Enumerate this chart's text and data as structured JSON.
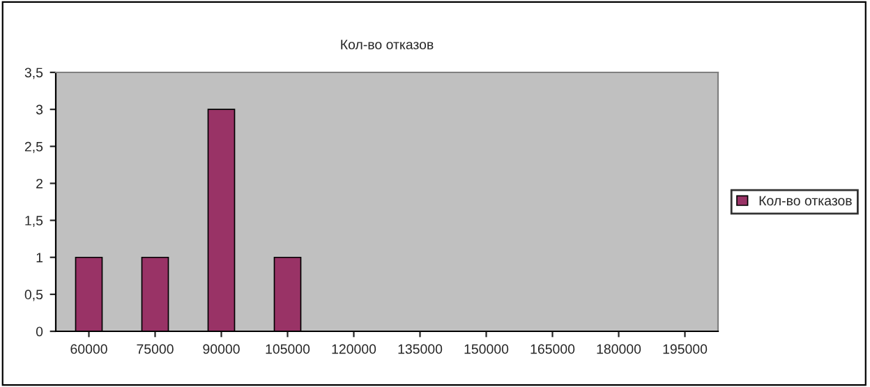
{
  "chart_data": {
    "type": "bar",
    "title": "Кол-во отказов",
    "categories": [
      "60000",
      "75000",
      "90000",
      "105000",
      "120000",
      "135000",
      "150000",
      "165000",
      "180000",
      "195000"
    ],
    "series": [
      {
        "name": "Кол-во отказов",
        "color": "#993366",
        "values": [
          1,
          1,
          3,
          1,
          0,
          0,
          0,
          0,
          0,
          0
        ]
      }
    ],
    "ylim": [
      0,
      3.5
    ],
    "yticks": [
      0,
      {
        "value": 0.5,
        "label": "0,5"
      },
      1,
      {
        "value": 1.5,
        "label": "1,5"
      },
      2,
      {
        "value": 2.5,
        "label": "2,5"
      },
      3,
      {
        "value": 3.5,
        "label": "3,5"
      }
    ],
    "grid": false,
    "legend": "right"
  }
}
